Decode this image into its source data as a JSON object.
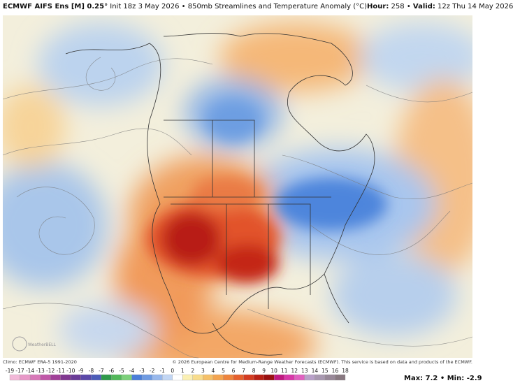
{
  "header": {
    "model": "ECMWF AIFS Ens [M] 0.25°",
    "init": "Init 18z 3 May 2026",
    "separator": "•",
    "product": "850mb Streamlines and Temperature Anomaly (°C)",
    "hour_label": "Hour:",
    "hour": "258",
    "valid_label": "Valid:",
    "valid": "12z Thu 14 May 2026"
  },
  "logo": "WeatherBELL",
  "footer": {
    "climo": "Climo: ECMWF ERA-5 1991-2020",
    "copyright": "© 2026 European Centre for Medium-Range Weather Forecasts (ECMWF). This service is based on data and products of the ECMWF."
  },
  "colorbar": {
    "labels": [
      -19,
      -17,
      -14,
      -13,
      -12,
      -11,
      -10,
      -9,
      -8,
      -7,
      -6,
      -5,
      -4,
      -3,
      -2,
      -1,
      0,
      1,
      2,
      3,
      4,
      5,
      6,
      7,
      8,
      9,
      10,
      11,
      12,
      13,
      14,
      15,
      16,
      18
    ]
  },
  "stats": {
    "max_label": "Max:",
    "max": 7.2,
    "min_label": "Min:",
    "min": -2.9
  }
}
